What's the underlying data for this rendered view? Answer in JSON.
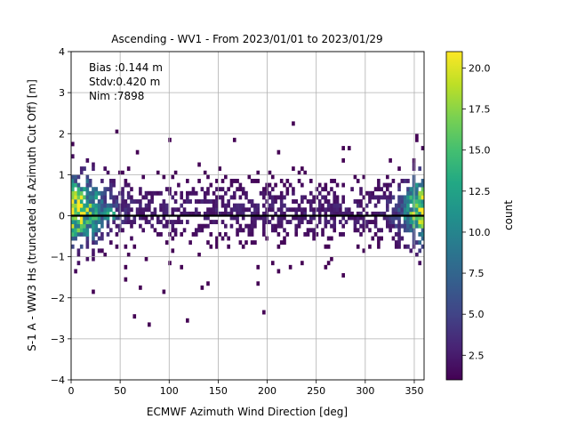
{
  "chart_data": {
    "type": "heatmap",
    "title": "Ascending - WV1 - From 2023/01/01 to 2023/01/29",
    "xlabel": "ECMWF Azimuth Wind Direction [deg]",
    "ylabel": "S-1 A - WW3 Hs (truncated at Azimuth Cut Off) [m]",
    "xlim": [
      0,
      360
    ],
    "ylim": [
      -4,
      4
    ],
    "x_ticks": [
      "0",
      "50",
      "100",
      "150",
      "200",
      "250",
      "300",
      "350"
    ],
    "y_ticks": [
      "-4",
      "-3",
      "-2",
      "-1",
      "0",
      "1",
      "2",
      "3",
      "4"
    ],
    "grid": true,
    "zero_line": 0,
    "annotations": [
      "Bias :0.144 m",
      "Stdv:0.420 m",
      "Nim :7898"
    ],
    "colorbar": {
      "label": "count",
      "colormap": "viridis",
      "range": [
        1,
        21
      ],
      "ticks": [
        "2.5",
        "5.0",
        "7.5",
        "10.0",
        "12.5",
        "15.0",
        "17.5",
        "20.0"
      ]
    },
    "bin_size": {
      "x_deg": 3,
      "y_m": 0.1
    },
    "hotspots": [
      {
        "x": 10,
        "y": 0.2,
        "count": 16
      },
      {
        "x": 40,
        "y": 0.05,
        "count": 16
      },
      {
        "x": 350,
        "y": 0.3,
        "count": 14
      },
      {
        "x": 355,
        "y": 0.4,
        "count": 13
      }
    ]
  }
}
